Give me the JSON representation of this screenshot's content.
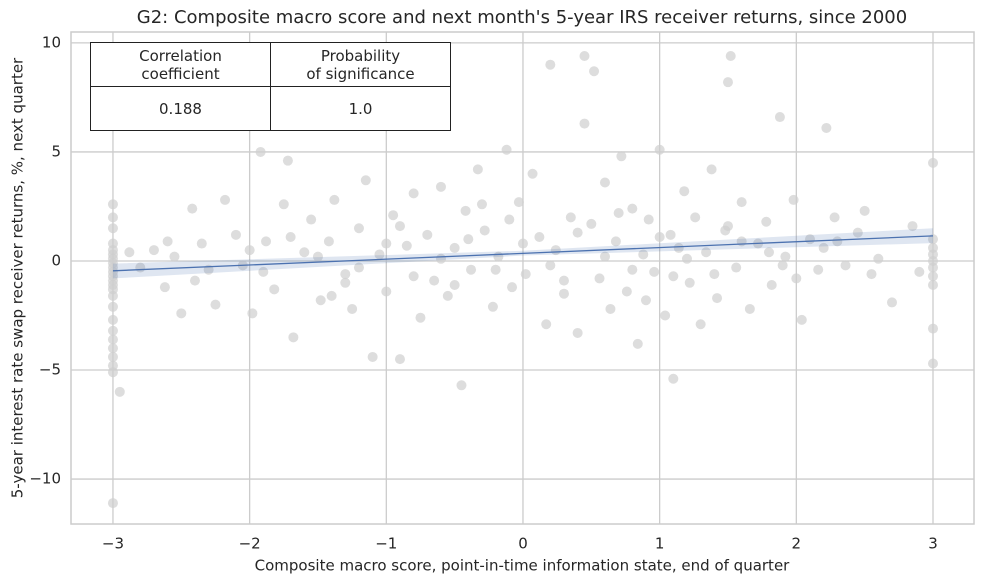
{
  "chart_data": {
    "type": "scatter",
    "title": "G2: Composite macro score and next month's 5-year IRS receiver returns, since 2000",
    "xlabel": "Composite macro score, point-in-time information state, end of quarter",
    "ylabel": "5-year interest rate swap receiver returns, %, next quarter",
    "xlim": [
      -3.307,
      3.3
    ],
    "ylim": [
      -12.06,
      10.5
    ],
    "xticks": [
      {
        "value": -3,
        "label": "−3"
      },
      {
        "value": -2,
        "label": "−2"
      },
      {
        "value": -1,
        "label": "−1"
      },
      0,
      1,
      2,
      3
    ],
    "yticks": [
      {
        "value": -10,
        "label": "−10"
      },
      {
        "value": -5,
        "label": "−5"
      },
      0,
      5,
      10
    ],
    "grid": true,
    "series": [
      {
        "type": "scatter",
        "color": "#cfcfcf",
        "x": [
          -3,
          -3,
          -3,
          -3,
          -3,
          -3,
          -3,
          -3,
          -3,
          -3,
          -3,
          -3,
          -3,
          -3,
          -3,
          -3,
          -3,
          -3,
          -3,
          -3,
          -3,
          -3,
          -3,
          -3,
          -2.95,
          3,
          3,
          3,
          3,
          3,
          3,
          3,
          3,
          3,
          3,
          -2.88,
          -2.8,
          -2.7,
          -2.62,
          -2.55,
          -2.5,
          -2.42,
          -2.35,
          -2.3,
          -2.25,
          -2.18,
          -2.1,
          -2.05,
          -1.98,
          -1.92,
          -1.88,
          -1.82,
          -1.75,
          -1.72,
          -1.68,
          -1.6,
          -1.55,
          -1.48,
          -1.42,
          -1.38,
          -1.3,
          -1.25,
          -1.2,
          -1.15,
          -1.1,
          -1.05,
          -1.0,
          -0.95,
          -0.9,
          -0.85,
          -0.8,
          -0.75,
          -0.7,
          -0.65,
          -0.6,
          -0.55,
          -0.5,
          -0.45,
          -0.42,
          -0.38,
          -0.33,
          -0.28,
          -0.22,
          -0.18,
          -0.12,
          -0.08,
          -0.03,
          0.02,
          0.07,
          0.12,
          0.17,
          0.2,
          0.24,
          0.3,
          0.35,
          0.4,
          0.45,
          0.45,
          0.5,
          0.52,
          0.56,
          0.6,
          0.64,
          0.68,
          0.72,
          0.76,
          0.8,
          0.84,
          0.88,
          0.92,
          0.96,
          1.0,
          1.04,
          1.08,
          1.1,
          1.14,
          1.18,
          1.22,
          1.26,
          1.3,
          1.34,
          1.38,
          1.42,
          1.48,
          1.5,
          1.52,
          1.56,
          1.6,
          1.66,
          1.72,
          1.78,
          1.82,
          1.88,
          1.92,
          1.98,
          2.04,
          2.1,
          2.16,
          2.22,
          2.28,
          2.36,
          2.45,
          2.55,
          2.7,
          2.85,
          -1.9,
          -1.5,
          -1.2,
          -1.0,
          -0.8,
          -0.6,
          -0.4,
          -0.2,
          0.0,
          0.2,
          0.4,
          0.6,
          0.8,
          1.0,
          1.2,
          1.4,
          1.6,
          1.8,
          2.0,
          2.2,
          -2.4,
          -2.0,
          -1.7,
          -1.3,
          -0.9,
          -0.5,
          -0.1,
          0.3,
          0.7,
          1.1,
          1.5,
          1.9,
          2.3,
          2.6,
          2.9,
          -2.6,
          -1.4,
          -0.3,
          0.9,
          2.5
        ],
        "values": [
          2.6,
          2.0,
          1.5,
          0.8,
          0.5,
          0.3,
          0.1,
          -0.1,
          -0.3,
          -0.5,
          -0.7,
          -0.9,
          -1.1,
          -1.3,
          -1.6,
          -2.1,
          -2.7,
          -3.2,
          -3.6,
          -4.0,
          -4.4,
          -4.8,
          -5.1,
          -11.1,
          -6.0,
          4.5,
          1.0,
          0.6,
          0.3,
          0.0,
          -0.3,
          -0.7,
          -1.1,
          -3.1,
          -4.7,
          0.4,
          -0.3,
          0.5,
          -1.2,
          0.2,
          -2.4,
          2.4,
          0.8,
          -0.4,
          -2.0,
          2.8,
          1.2,
          -0.2,
          -2.4,
          5.0,
          0.9,
          -1.3,
          2.6,
          4.6,
          -3.5,
          0.4,
          1.9,
          -1.8,
          0.9,
          2.8,
          -0.6,
          -2.2,
          1.5,
          3.7,
          -4.4,
          0.3,
          -1.4,
          2.1,
          -4.5,
          0.7,
          3.1,
          -2.6,
          1.2,
          -0.9,
          3.4,
          -1.6,
          0.6,
          -5.7,
          2.3,
          -0.4,
          4.2,
          1.4,
          -2.1,
          0.2,
          5.1,
          -1.2,
          2.7,
          -0.6,
          4.0,
          1.1,
          -2.9,
          9.0,
          0.5,
          -1.5,
          2.0,
          -3.3,
          9.4,
          6.3,
          1.7,
          8.7,
          -0.8,
          3.6,
          -2.2,
          0.9,
          4.8,
          -1.4,
          2.4,
          -3.8,
          0.3,
          1.9,
          -0.5,
          5.1,
          -2.5,
          1.2,
          -5.4,
          0.6,
          3.2,
          -1.0,
          2.0,
          -2.9,
          0.4,
          4.2,
          -1.7,
          1.4,
          8.2,
          9.4,
          -0.3,
          2.7,
          -2.2,
          0.8,
          1.8,
          -1.1,
          6.6,
          0.2,
          2.8,
          -2.7,
          1.0,
          -0.4,
          6.1,
          2.0,
          -0.2,
          1.3,
          -0.6,
          -1.9,
          1.6,
          -0.5,
          0.2,
          -0.3,
          0.8,
          -0.7,
          0.1,
          1.0,
          -0.4,
          0.8,
          -0.2,
          1.3,
          0.2,
          -0.4,
          1.1,
          0.1,
          -0.6,
          0.9,
          0.4,
          -0.8,
          0.6,
          -0.9,
          0.5,
          1.1,
          -1.0,
          1.6,
          -1.1,
          1.9,
          -0.9,
          2.2,
          -0.7,
          1.6,
          -0.2,
          0.9,
          0.1,
          -0.5,
          0.9,
          -1.6,
          2.6,
          -1.8,
          2.3
        ]
      },
      {
        "type": "line",
        "color": "#4c72b0",
        "x": [
          -3,
          3
        ],
        "values": [
          -0.45,
          1.15
        ]
      }
    ],
    "band": {
      "color": "#4c72b0",
      "x": [
        -3,
        0,
        3
      ],
      "lower": [
        -0.8,
        0.25,
        0.82
      ],
      "upper": [
        -0.12,
        0.47,
        1.5
      ]
    }
  },
  "table": {
    "header": [
      [
        "Correlation",
        "coefficient"
      ],
      [
        "Probability",
        "of significance"
      ]
    ],
    "rows": [
      [
        "0.188",
        "1.0"
      ]
    ]
  }
}
